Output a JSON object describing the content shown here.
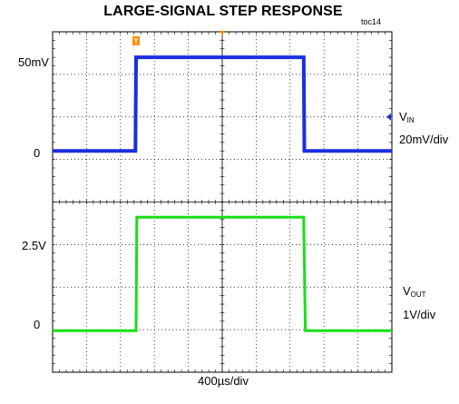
{
  "header": {
    "title": "LARGE-SIGNAL STEP RESPONSE",
    "figure_id": "toc14"
  },
  "colors": {
    "vin": "#1a2fe0",
    "vout": "#18e018",
    "grid": "#000000",
    "trigger": "#ff8c00"
  },
  "x_label": "400µs/div",
  "top_panel": {
    "ticks": [
      "50mV",
      "0"
    ],
    "channel_symbol": "V",
    "channel_subscript": "IN",
    "scale": "20mV/div",
    "trigger_marker": "T"
  },
  "bottom_panel": {
    "ticks": [
      "2.5V",
      "0"
    ],
    "channel_symbol": "V",
    "channel_subscript": "OUT",
    "scale": "1V/div"
  },
  "chart_data": [
    {
      "type": "line",
      "series": [
        {
          "channel": "VIN",
          "x_div": [
            0,
            2.44,
            2.46,
            7.4,
            7.42,
            10
          ],
          "y_mV": [
            0,
            0,
            55,
            55,
            0,
            0
          ]
        }
      ],
      "x_scale": "400µs/div",
      "y_scale": "20mV/div",
      "xlim_div": [
        0,
        10
      ],
      "ylim_mV": [
        -30,
        70
      ],
      "grid": true
    },
    {
      "type": "line",
      "series": [
        {
          "channel": "VOUT",
          "x_div": [
            0,
            2.46,
            2.48,
            7.4,
            7.45,
            10
          ],
          "y_V": [
            0,
            0,
            3,
            3,
            0,
            0
          ]
        }
      ],
      "x_scale": "400µs/div",
      "y_scale": "1V/div",
      "xlim_div": [
        0,
        10
      ],
      "ylim_V": [
        -1.1,
        3.4
      ],
      "grid": true
    }
  ]
}
